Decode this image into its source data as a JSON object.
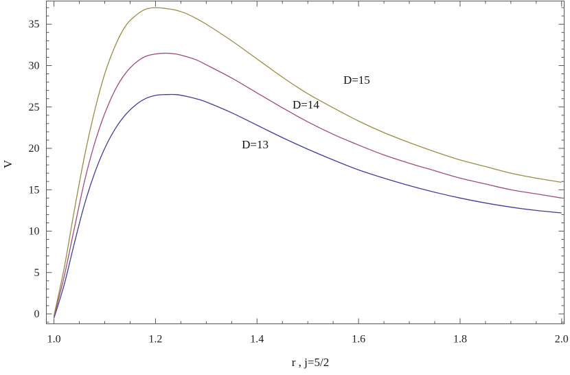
{
  "chart_data": {
    "type": "line",
    "title": "",
    "xlabel": "r , j=5/2",
    "ylabel": "V",
    "xlim": [
      0.985,
      2.005
    ],
    "ylim": [
      -1.2,
      37.8
    ],
    "grid": false,
    "x_ticks": [
      {
        "value": 1.0,
        "label": "1.0"
      },
      {
        "value": 1.2,
        "label": "1.2"
      },
      {
        "value": 1.4,
        "label": "1.4"
      },
      {
        "value": 1.6,
        "label": "1.6"
      },
      {
        "value": 1.8,
        "label": "1.8"
      },
      {
        "value": 2.0,
        "label": "2.0"
      }
    ],
    "y_ticks": [
      {
        "value": 0,
        "label": "0"
      },
      {
        "value": 5,
        "label": "5"
      },
      {
        "value": 10,
        "label": "10"
      },
      {
        "value": 15,
        "label": "15"
      },
      {
        "value": 20,
        "label": "20"
      },
      {
        "value": 25,
        "label": "25"
      },
      {
        "value": 30,
        "label": "30"
      },
      {
        "value": 35,
        "label": "35"
      }
    ],
    "series": [
      {
        "name": "D=13",
        "color": "#3d3d9c",
        "x": [
          1.0,
          1.02,
          1.04,
          1.06,
          1.08,
          1.1,
          1.12,
          1.14,
          1.16,
          1.18,
          1.2,
          1.22,
          1.24,
          1.26,
          1.28,
          1.3,
          1.35,
          1.4,
          1.45,
          1.5,
          1.55,
          1.6,
          1.65,
          1.7,
          1.75,
          1.8,
          1.85,
          1.9,
          1.95,
          2.0
        ],
        "y": [
          -0.5,
          3.5,
          8.5,
          13.2,
          17.0,
          20.0,
          22.3,
          24.0,
          25.2,
          26.0,
          26.4,
          26.5,
          26.5,
          26.3,
          26.0,
          25.6,
          24.3,
          22.8,
          21.3,
          19.9,
          18.6,
          17.4,
          16.4,
          15.5,
          14.7,
          14.0,
          13.4,
          12.9,
          12.5,
          12.2
        ],
        "label": {
          "text": "D=13",
          "x": 1.37,
          "y": 20.0
        }
      },
      {
        "name": "D=14",
        "color": "#a14a7c",
        "x": [
          1.0,
          1.02,
          1.04,
          1.06,
          1.08,
          1.1,
          1.12,
          1.14,
          1.16,
          1.18,
          1.2,
          1.22,
          1.24,
          1.26,
          1.28,
          1.3,
          1.35,
          1.4,
          1.45,
          1.5,
          1.55,
          1.6,
          1.65,
          1.7,
          1.75,
          1.8,
          1.85,
          1.9,
          1.95,
          2.0
        ],
        "y": [
          -0.3,
          4.5,
          10.3,
          16.0,
          20.6,
          24.2,
          27.0,
          29.0,
          30.3,
          31.1,
          31.4,
          31.5,
          31.4,
          31.1,
          30.7,
          30.1,
          28.5,
          26.7,
          24.9,
          23.2,
          21.7,
          20.4,
          19.2,
          18.2,
          17.3,
          16.4,
          15.7,
          15.0,
          14.5,
          14.0
        ],
        "label": {
          "text": "D=14",
          "x": 1.47,
          "y": 24.8
        }
      },
      {
        "name": "D=15",
        "color": "#9a8c40",
        "x": [
          1.0,
          1.02,
          1.04,
          1.06,
          1.08,
          1.1,
          1.12,
          1.14,
          1.16,
          1.18,
          1.2,
          1.22,
          1.24,
          1.26,
          1.28,
          1.3,
          1.35,
          1.4,
          1.45,
          1.5,
          1.55,
          1.6,
          1.65,
          1.7,
          1.75,
          1.8,
          1.85,
          1.9,
          1.95,
          2.0
        ],
        "y": [
          -0.2,
          5.5,
          12.5,
          19.0,
          24.5,
          29.0,
          32.3,
          34.7,
          36.0,
          36.8,
          37.0,
          36.9,
          36.7,
          36.3,
          35.7,
          35.0,
          33.0,
          30.8,
          28.6,
          26.6,
          24.9,
          23.3,
          21.9,
          20.7,
          19.6,
          18.6,
          17.8,
          17.0,
          16.4,
          15.9
        ],
        "label": {
          "text": "D=15",
          "x": 1.57,
          "y": 27.8
        }
      }
    ]
  }
}
